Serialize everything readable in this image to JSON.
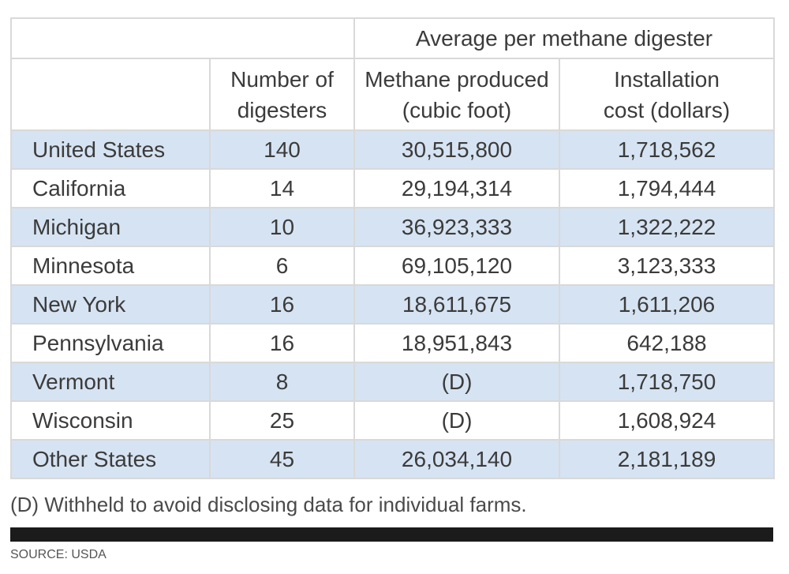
{
  "chart_data": {
    "type": "table",
    "group_header": "Average per methane digester",
    "columns": [
      "Number of\ndigesters",
      "Methane produced\n(cubic foot)",
      "Installation\ncost (dollars)"
    ],
    "rows": [
      {
        "state": "United States",
        "digesters": "140",
        "methane": "30,515,800",
        "cost": "1,718,562"
      },
      {
        "state": "California",
        "digesters": "14",
        "methane": "29,194,314",
        "cost": "1,794,444"
      },
      {
        "state": "Michigan",
        "digesters": "10",
        "methane": "36,923,333",
        "cost": "1,322,222"
      },
      {
        "state": "Minnesota",
        "digesters": "6",
        "methane": "69,105,120",
        "cost": "3,123,333"
      },
      {
        "state": "New York",
        "digesters": "16",
        "methane": "18,611,675",
        "cost": "1,611,206"
      },
      {
        "state": "Pennsylvania",
        "digesters": "16",
        "methane": "18,951,843",
        "cost": "642,188"
      },
      {
        "state": "Vermont",
        "digesters": "8",
        "methane": "(D)",
        "cost": "1,718,750"
      },
      {
        "state": "Wisconsin",
        "digesters": "25",
        "methane": "(D)",
        "cost": "1,608,924"
      },
      {
        "state": "Other States",
        "digesters": "45",
        "methane": "26,034,140",
        "cost": "2,181,189"
      }
    ],
    "footnote": "(D) Withheld to avoid disclosing data for individual farms.",
    "source": "SOURCE: USDA"
  },
  "colors": {
    "row_shade": "#d6e3f2",
    "grid": "#d9d9d9",
    "rule": "#1b1b1b"
  }
}
